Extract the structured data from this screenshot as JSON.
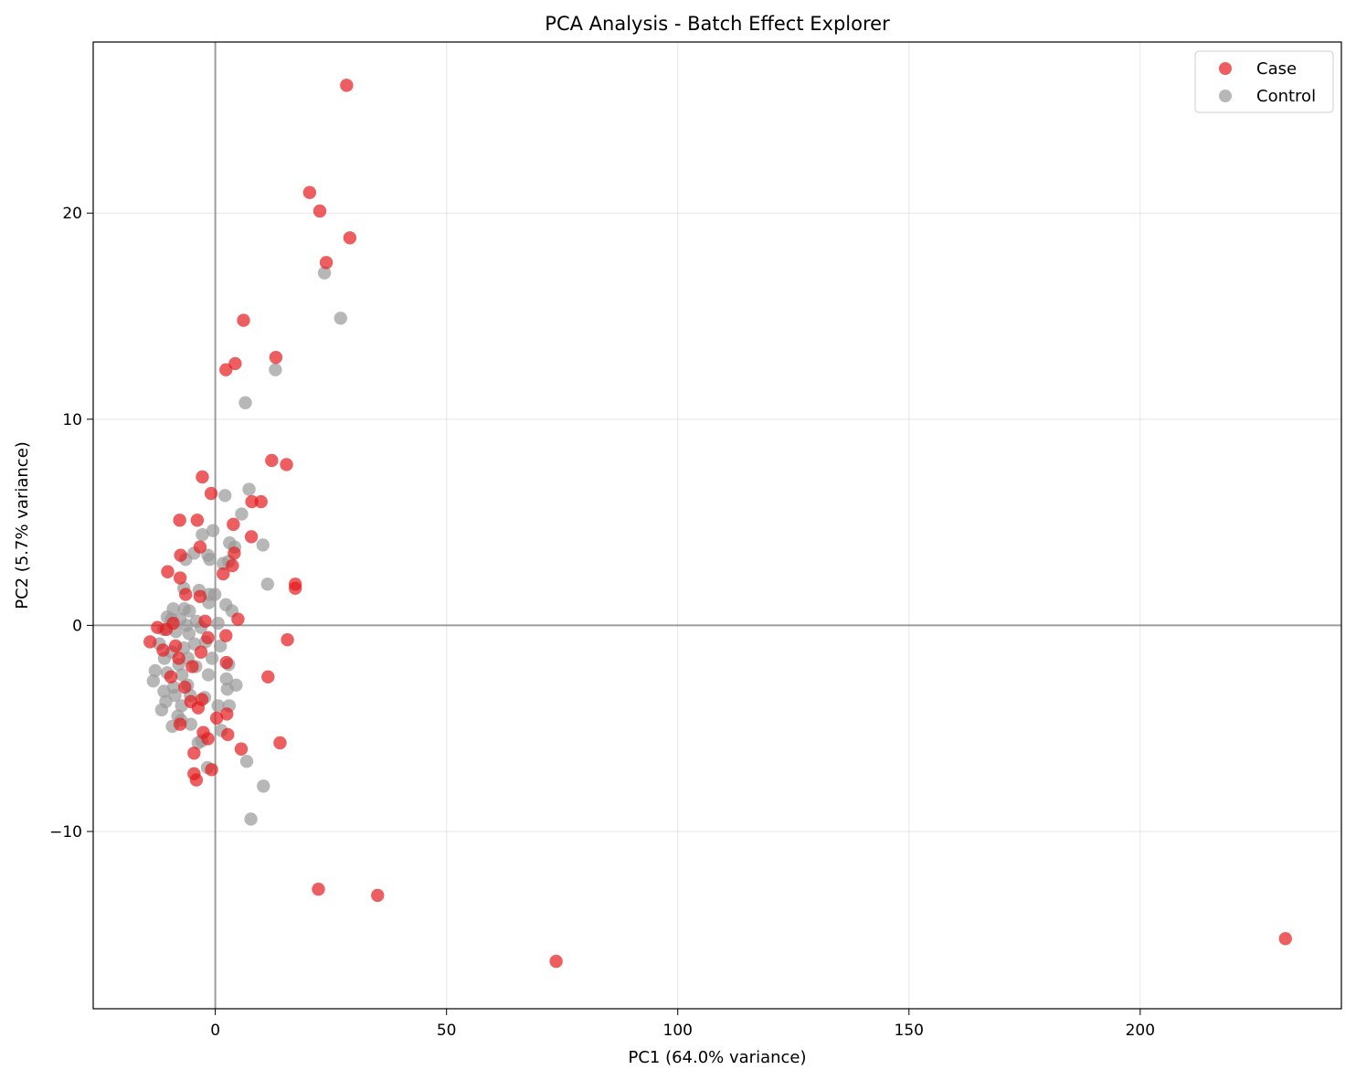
{
  "chart_data": {
    "type": "scatter",
    "title": "PCA Analysis - Batch Effect Explorer",
    "xlabel": "PC1 (64.0% variance)",
    "ylabel": "PC2 (5.7% variance)",
    "xlim": [
      -26.4,
      243.5
    ],
    "ylim": [
      -18.6,
      28.3
    ],
    "xticks": [
      0,
      50,
      100,
      150,
      200
    ],
    "yticks": [
      -10,
      0,
      10,
      20
    ],
    "grid": true,
    "zero_lines": true,
    "legend": "top-right",
    "colors": {
      "Case": "#e41a1c",
      "Control": "#999999"
    },
    "series": [
      {
        "name": "Case",
        "points": [
          [
            28.4,
            26.2
          ],
          [
            20.4,
            21.0
          ],
          [
            22.6,
            20.1
          ],
          [
            29.1,
            18.8
          ],
          [
            24.0,
            17.6
          ],
          [
            6.1,
            14.8
          ],
          [
            4.3,
            12.7
          ],
          [
            2.3,
            12.4
          ],
          [
            13.1,
            13.0
          ],
          [
            12.2,
            8.0
          ],
          [
            15.4,
            7.8
          ],
          [
            -2.8,
            7.2
          ],
          [
            -0.9,
            6.4
          ],
          [
            9.9,
            6.0
          ],
          [
            7.9,
            6.0
          ],
          [
            -7.7,
            5.1
          ],
          [
            -3.9,
            5.1
          ],
          [
            3.9,
            4.9
          ],
          [
            7.8,
            4.3
          ],
          [
            -3.3,
            3.8
          ],
          [
            -7.5,
            3.4
          ],
          [
            4.1,
            3.5
          ],
          [
            3.7,
            2.9
          ],
          [
            -10.3,
            2.6
          ],
          [
            1.7,
            2.5
          ],
          [
            -7.6,
            2.3
          ],
          [
            17.3,
            2.0
          ],
          [
            17.3,
            1.8
          ],
          [
            -6.4,
            1.5
          ],
          [
            -3.3,
            1.4
          ],
          [
            4.9,
            0.3
          ],
          [
            -2.2,
            0.2
          ],
          [
            -12.5,
            -0.1
          ],
          [
            -10.6,
            -0.2
          ],
          [
            -9.1,
            0.1
          ],
          [
            2.3,
            -0.5
          ],
          [
            -14.1,
            -0.8
          ],
          [
            -1.6,
            -0.6
          ],
          [
            -11.3,
            -1.2
          ],
          [
            -8.6,
            -1.0
          ],
          [
            15.6,
            -0.7
          ],
          [
            -7.9,
            -1.6
          ],
          [
            -3.1,
            -1.3
          ],
          [
            -5.0,
            -2.0
          ],
          [
            2.4,
            -1.8
          ],
          [
            11.4,
            -2.5
          ],
          [
            -9.6,
            -2.5
          ],
          [
            -6.6,
            -3.0
          ],
          [
            -2.9,
            -3.6
          ],
          [
            -5.3,
            -3.7
          ],
          [
            -3.7,
            -4.0
          ],
          [
            2.5,
            -4.3
          ],
          [
            0.3,
            -4.5
          ],
          [
            -7.6,
            -4.8
          ],
          [
            -2.6,
            -5.2
          ],
          [
            2.7,
            -5.3
          ],
          [
            -1.6,
            -5.5
          ],
          [
            14.0,
            -5.7
          ],
          [
            5.6,
            -6.0
          ],
          [
            -4.6,
            -6.2
          ],
          [
            -0.8,
            -7.0
          ],
          [
            -4.6,
            -7.2
          ],
          [
            -4.1,
            -7.5
          ],
          [
            22.3,
            -12.8
          ],
          [
            35.1,
            -13.1
          ],
          [
            73.7,
            -16.3
          ],
          [
            231.4,
            -15.2
          ]
        ]
      },
      {
        "name": "Control",
        "points": [
          [
            23.6,
            17.1
          ],
          [
            27.1,
            14.9
          ],
          [
            13.0,
            12.4
          ],
          [
            6.5,
            10.8
          ],
          [
            7.3,
            6.6
          ],
          [
            2.1,
            6.3
          ],
          [
            5.7,
            5.4
          ],
          [
            -0.5,
            4.6
          ],
          [
            -2.8,
            4.4
          ],
          [
            10.3,
            3.9
          ],
          [
            3.1,
            4.0
          ],
          [
            4.2,
            3.8
          ],
          [
            -4.6,
            3.5
          ],
          [
            -6.4,
            3.2
          ],
          [
            -1.6,
            3.4
          ],
          [
            -1.2,
            3.2
          ],
          [
            1.7,
            3.0
          ],
          [
            2.9,
            3.1
          ],
          [
            11.3,
            2.0
          ],
          [
            -6.8,
            1.8
          ],
          [
            -3.5,
            1.7
          ],
          [
            -1.3,
            1.5
          ],
          [
            -0.1,
            1.5
          ],
          [
            2.3,
            1.0
          ],
          [
            3.6,
            0.7
          ],
          [
            -6.7,
            0.8
          ],
          [
            -5.6,
            0.7
          ],
          [
            -9.1,
            0.8
          ],
          [
            -1.4,
            1.1
          ],
          [
            -7.6,
            0.3
          ],
          [
            -4.1,
            0.2
          ],
          [
            -6.2,
            0.0
          ],
          [
            0.6,
            0.1
          ],
          [
            -9.5,
            0.3
          ],
          [
            -10.4,
            0.4
          ],
          [
            -11.2,
            -0.2
          ],
          [
            -8.5,
            -0.3
          ],
          [
            -5.7,
            -0.4
          ],
          [
            -3.1,
            -0.1
          ],
          [
            -12.1,
            -0.9
          ],
          [
            -9.4,
            -1.3
          ],
          [
            -6.8,
            -1.1
          ],
          [
            -4.5,
            -0.9
          ],
          [
            -2.1,
            -0.8
          ],
          [
            1.1,
            -1.0
          ],
          [
            -11.0,
            -1.6
          ],
          [
            -7.9,
            -1.9
          ],
          [
            -5.9,
            -1.6
          ],
          [
            -0.7,
            -1.6
          ],
          [
            2.9,
            -1.9
          ],
          [
            -13.0,
            -2.2
          ],
          [
            -10.4,
            -2.3
          ],
          [
            -7.2,
            -2.4
          ],
          [
            -4.2,
            -2.0
          ],
          [
            -1.5,
            -2.4
          ],
          [
            2.4,
            -2.6
          ],
          [
            -13.4,
            -2.7
          ],
          [
            -9.0,
            -3.0
          ],
          [
            -6.0,
            -2.9
          ],
          [
            -11.1,
            -3.2
          ],
          [
            4.5,
            -2.9
          ],
          [
            2.6,
            -3.1
          ],
          [
            -8.7,
            -3.4
          ],
          [
            -5.4,
            -3.4
          ],
          [
            -2.3,
            -3.5
          ],
          [
            -10.7,
            -3.7
          ],
          [
            -7.3,
            -3.9
          ],
          [
            0.6,
            -3.9
          ],
          [
            3.0,
            -3.9
          ],
          [
            -11.6,
            -4.1
          ],
          [
            -8.1,
            -4.4
          ],
          [
            -7.4,
            -4.6
          ],
          [
            -5.3,
            -4.8
          ],
          [
            -9.3,
            -4.9
          ],
          [
            1.3,
            -5.1
          ],
          [
            -3.7,
            -5.7
          ],
          [
            -2.9,
            -5.6
          ],
          [
            6.8,
            -6.6
          ],
          [
            -1.7,
            -6.9
          ],
          [
            10.4,
            -7.8
          ],
          [
            7.7,
            -9.4
          ]
        ]
      }
    ]
  }
}
